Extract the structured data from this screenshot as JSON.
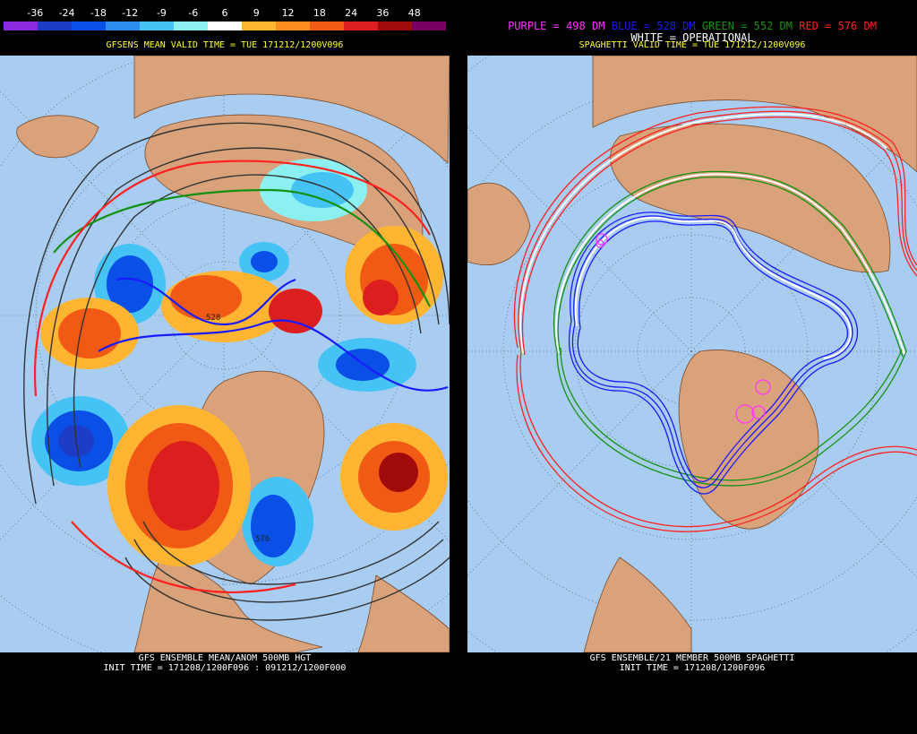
{
  "left": {
    "colorbar": {
      "ticks": [
        "-36",
        "-24",
        "-18",
        "-12",
        "-9",
        "-6",
        "6",
        "9",
        "12",
        "18",
        "24",
        "36",
        "48"
      ],
      "colors": [
        "#8a2be2",
        "#1e3cc8",
        "#0a50e6",
        "#2d8cf0",
        "#46c3f5",
        "#8cf0f0",
        "#ffffff",
        "#ffb432",
        "#ff8c1e",
        "#f05a14",
        "#dc1e1e",
        "#a00a0a",
        "#780064"
      ]
    },
    "valid_label": "GFSENS MEAN VALID TIME = TUE 171212/1200V096",
    "footer_line1": "GFS ENSEMBLE MEAN/ANOM 500MB HGT",
    "footer_line2": "INIT TIME = 171208/1200F096 : 091212/1200F000",
    "contour_label_528": "528",
    "contour_label_576": "576"
  },
  "right": {
    "legend": {
      "purple": "PURPLE = 498 DM",
      "blue": "BLUE = 528 DM",
      "green": "GREEN = 552 DM",
      "red": "RED = 576 DM",
      "white": "WHITE = OPERATIONAL"
    },
    "valid_label": "SPAGHETTI VALID TIME = TUE 171212/1200V096",
    "footer_line1": "GFS ENSEMBLE/21 MEMBER 500MB SPAGHETTI",
    "footer_line2": "INIT TIME = 171208/1200F096"
  },
  "colors": {
    "ocean": "#a9cdf0",
    "land": "#d9a27a",
    "purple": "#ff33ff",
    "blue": "#1a1aff",
    "green": "#139113",
    "red": "#ff2020"
  }
}
